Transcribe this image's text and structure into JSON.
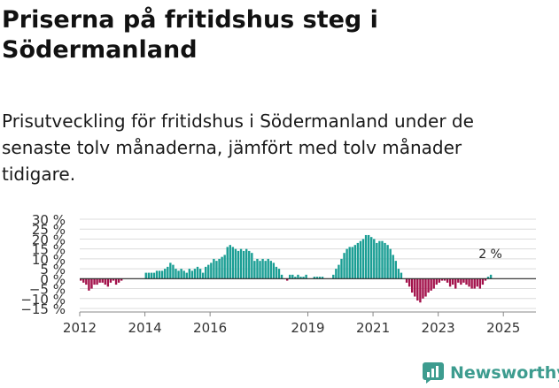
{
  "header": {
    "title": "Priserna på fritidshus steg i Södermanland",
    "subtitle": "Prisutveckling för fritidshus i Södermanland under de senaste tolv månaderna, jämfört med tolv månader tidigare."
  },
  "brand": {
    "name": "Newsworthy",
    "icon": "newsworthy-logo-icon",
    "color": "#3d9c8f"
  },
  "chart_data": {
    "type": "bar",
    "x_start": "2012-01",
    "x_end": "2026-01",
    "xticks": [
      {
        "label": "2012",
        "date": "2012-01"
      },
      {
        "label": "2014",
        "date": "2014-01"
      },
      {
        "label": "2016",
        "date": "2016-01"
      },
      {
        "label": "2019",
        "date": "2019-01"
      },
      {
        "label": "2021",
        "date": "2021-01"
      },
      {
        "label": "2023",
        "date": "2023-01"
      },
      {
        "label": "2025",
        "date": "2025-01"
      }
    ],
    "ylim": [
      -15,
      30
    ],
    "yticks": [
      {
        "value": 30,
        "label": "30 %"
      },
      {
        "value": 25,
        "label": "25 %"
      },
      {
        "value": 20,
        "label": "20 %"
      },
      {
        "value": 15,
        "label": "15 %"
      },
      {
        "value": 10,
        "label": "10 %"
      },
      {
        "value": 5,
        "label": "5 %"
      },
      {
        "value": 0,
        "label": "0 %"
      },
      {
        "value": -5,
        "label": "−5 %"
      },
      {
        "value": -10,
        "label": "−10 %"
      },
      {
        "value": -15,
        "label": "−15 %"
      }
    ],
    "grid": true,
    "positive_color": "#1a9e94",
    "negative_color": "#a3124b",
    "last_value_label": "2 %",
    "series": [
      {
        "start": "2012-01",
        "values": [
          -1,
          -2,
          -3,
          -6,
          -5,
          -3,
          -3,
          -2,
          -2,
          -3,
          -4,
          -2,
          -1,
          -3,
          -2,
          -1,
          0,
          0,
          0,
          0,
          0,
          0,
          0,
          0,
          3,
          3,
          3,
          3,
          4,
          4,
          4,
          5,
          6,
          8,
          7,
          5,
          4,
          5,
          4,
          3,
          5,
          4,
          5,
          6,
          5,
          3,
          6,
          7,
          8,
          10,
          9,
          10,
          11,
          12,
          16,
          17,
          16,
          15,
          14,
          15,
          14,
          15,
          14,
          13,
          9,
          10,
          9,
          10,
          9,
          10,
          9,
          8,
          6,
          5,
          2,
          0,
          -1,
          2,
          2,
          1,
          2,
          1,
          1,
          2,
          0,
          0,
          1,
          1,
          1,
          1,
          0,
          0,
          0,
          2,
          5,
          7,
          10,
          13,
          15,
          16,
          16,
          17,
          18,
          19,
          20,
          22,
          22,
          21,
          20,
          18,
          19,
          19,
          18,
          17,
          15,
          12,
          9,
          5,
          3,
          0,
          -2,
          -4,
          -7,
          -9,
          -11,
          -12,
          -10,
          -9,
          -7,
          -6,
          -5,
          -3,
          -2,
          -1,
          -1,
          -2,
          -4,
          -3,
          -5,
          -2,
          -3,
          -2,
          -3,
          -4,
          -5,
          -5,
          -4,
          -5,
          -3,
          -1,
          1,
          2
        ]
      }
    ]
  }
}
